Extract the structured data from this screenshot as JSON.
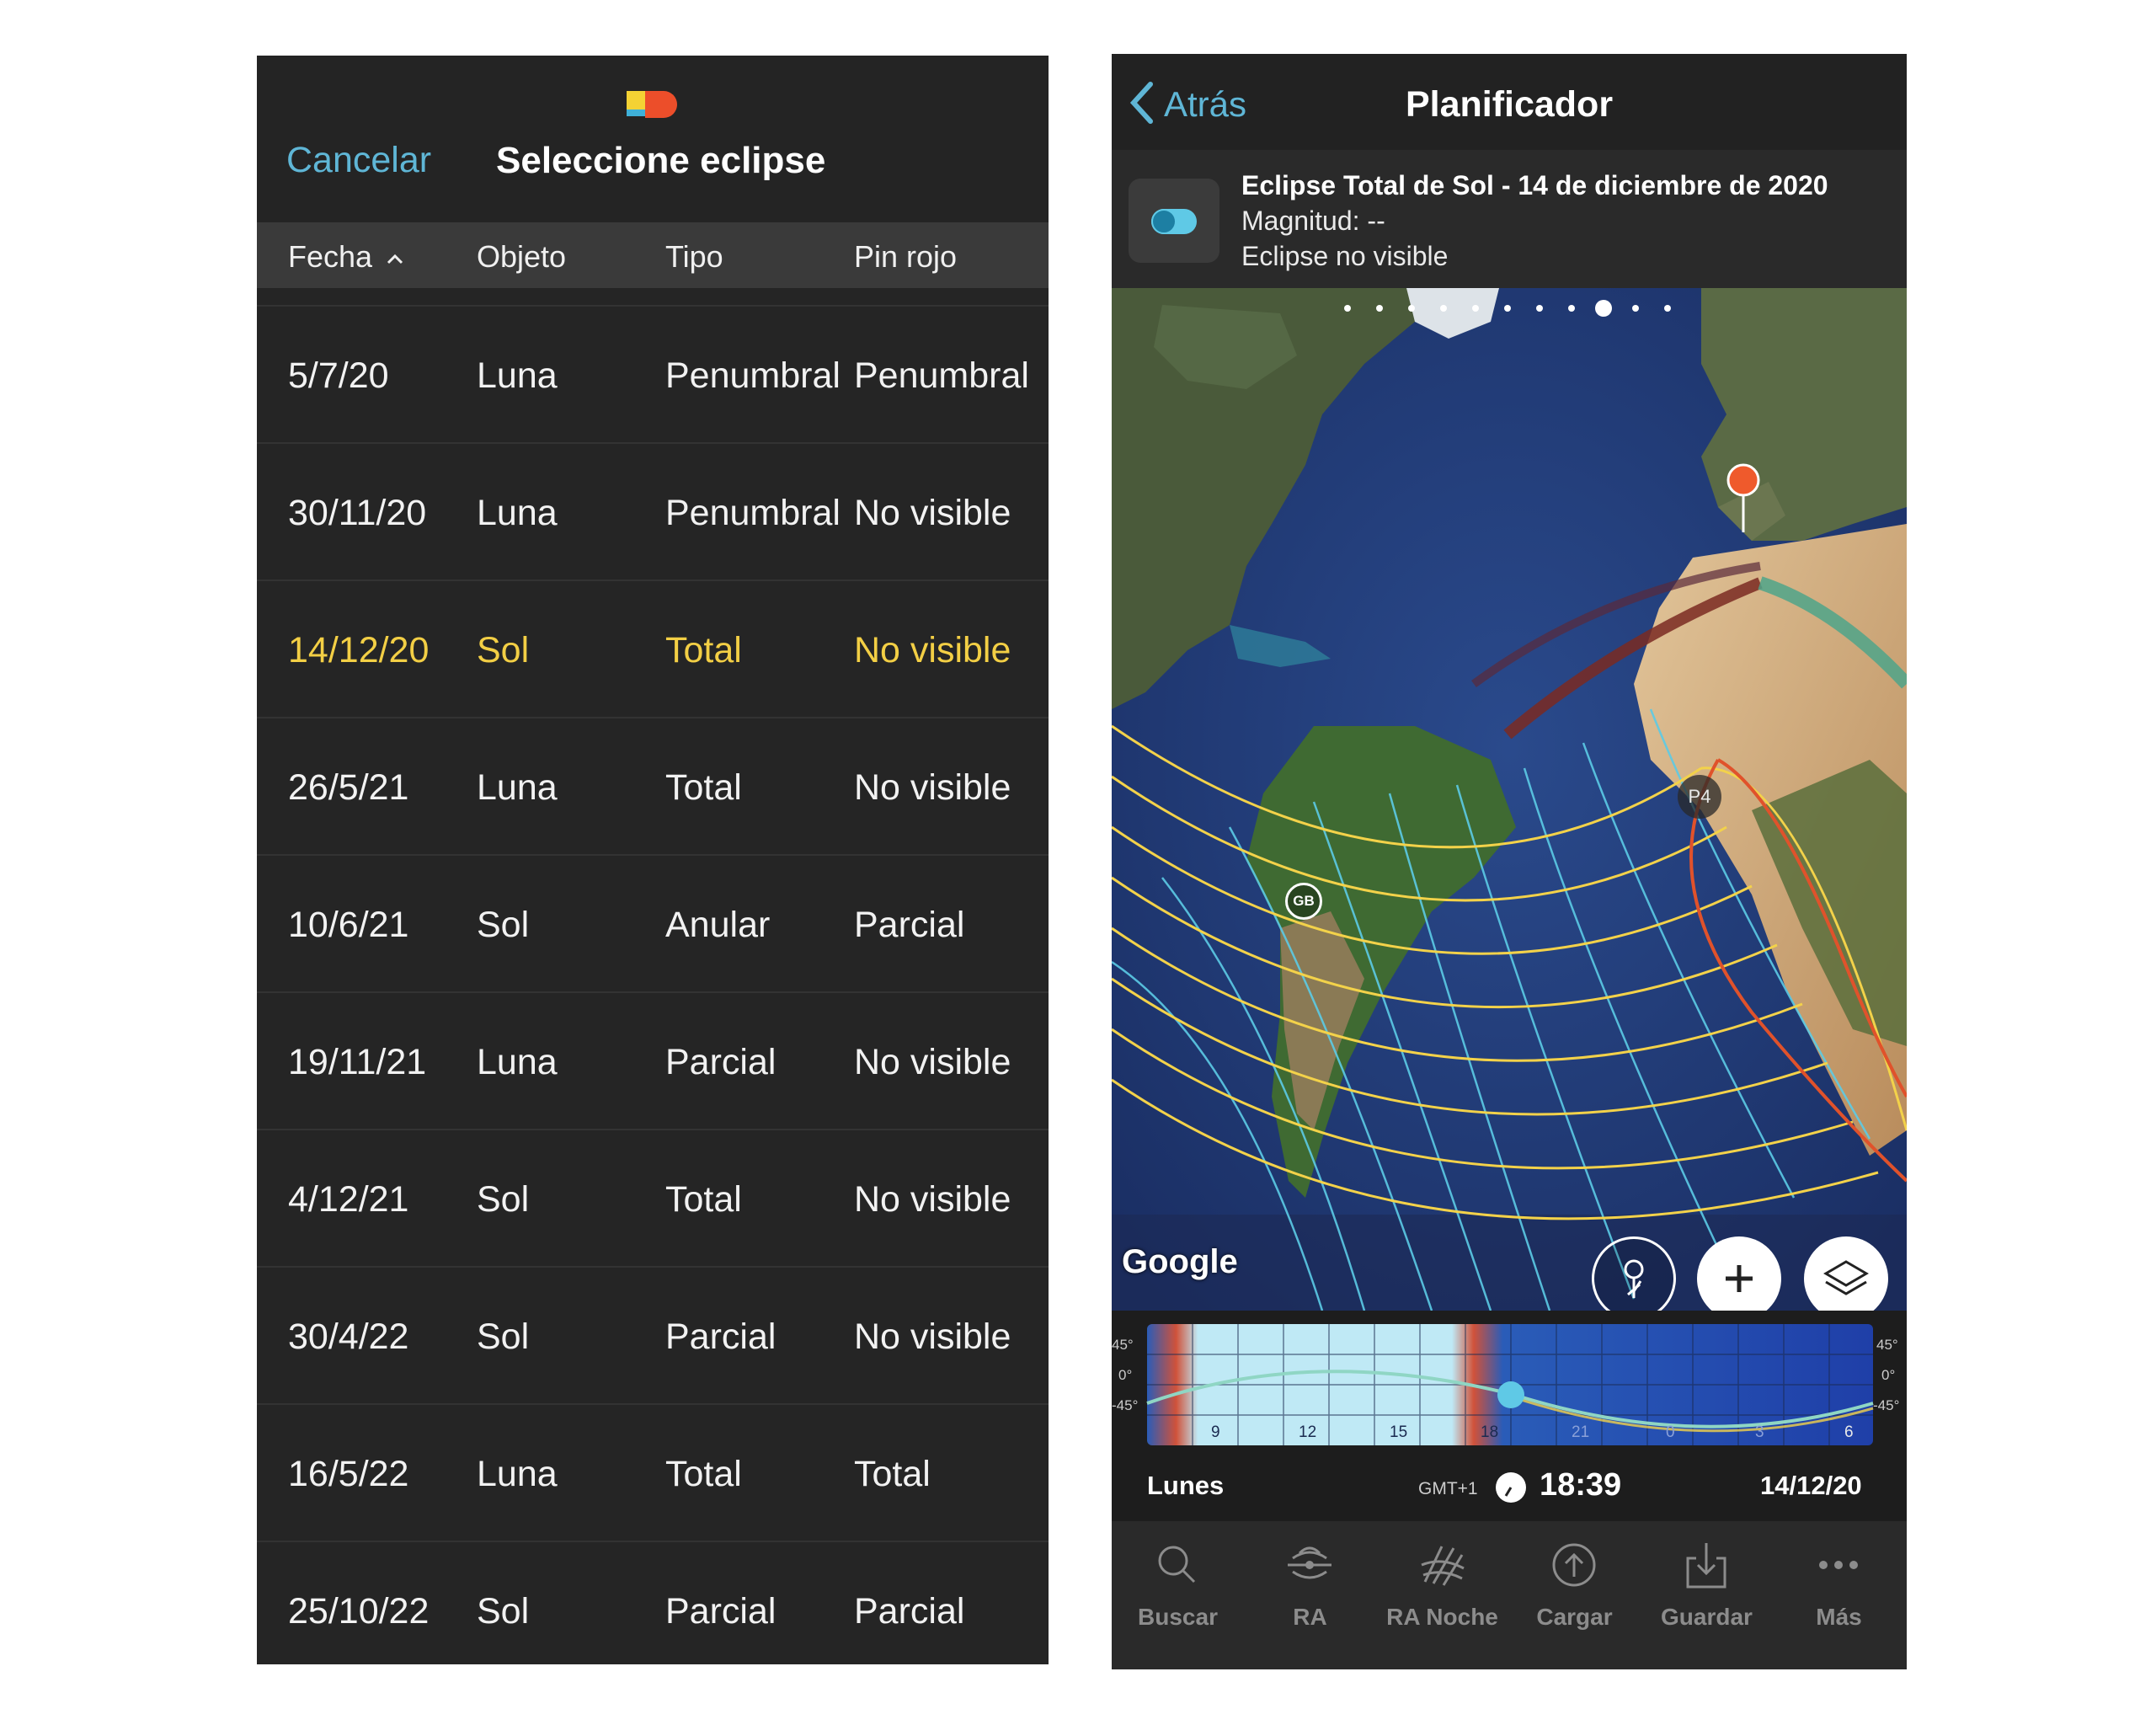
{
  "left_panel": {
    "cancel_label": "Cancelar",
    "title": "Seleccione eclipse",
    "columns": [
      "Fecha",
      "Objeto",
      "Tipo",
      "Pin rojo"
    ],
    "sort_indicator": "chevron-up-icon",
    "highlight_color": "#f3cf45",
    "rows": [
      {
        "fecha": "5/7/20",
        "objeto": "Luna",
        "tipo": "Penumbral",
        "pin": "Penumbral"
      },
      {
        "fecha": "30/11/20",
        "objeto": "Luna",
        "tipo": "Penumbral",
        "pin": "No visible"
      },
      {
        "fecha": "14/12/20",
        "objeto": "Sol",
        "tipo": "Total",
        "pin": "No visible"
      },
      {
        "fecha": "26/5/21",
        "objeto": "Luna",
        "tipo": "Total",
        "pin": "No visible"
      },
      {
        "fecha": "10/6/21",
        "objeto": "Sol",
        "tipo": "Anular",
        "pin": "Parcial"
      },
      {
        "fecha": "19/11/21",
        "objeto": "Luna",
        "tipo": "Parcial",
        "pin": "No visible"
      },
      {
        "fecha": "4/12/21",
        "objeto": "Sol",
        "tipo": "Total",
        "pin": "No visible"
      },
      {
        "fecha": "30/4/22",
        "objeto": "Sol",
        "tipo": "Parcial",
        "pin": "No visible"
      },
      {
        "fecha": "16/5/22",
        "objeto": "Luna",
        "tipo": "Total",
        "pin": "Total"
      },
      {
        "fecha": "25/10/22",
        "objeto": "Sol",
        "tipo": "Parcial",
        "pin": "Parcial"
      }
    ]
  },
  "right_panel": {
    "back_label": "Atrás",
    "title": "Planificador",
    "eclipse_title": "Eclipse Total de Sol - 14 de diciembre de 2020",
    "magnitude": "Magnitud: --",
    "visibility": "Eclipse no visible",
    "map": {
      "logo": "Google",
      "p4_label": "P4",
      "gb_label": "GB",
      "page_dots": 10,
      "active_dot": 8
    },
    "graph": {
      "left_ticks": [
        "45°",
        "0°",
        "-45°"
      ],
      "right_ticks": [
        "45°",
        "0°",
        "-45°"
      ],
      "hour_labels": [
        "9",
        "12",
        "15",
        "18",
        "21",
        "0",
        "3",
        "6"
      ]
    },
    "status": {
      "day": "Lunes",
      "timezone": "GMT+1",
      "time": "18:39",
      "date": "14/12/20"
    },
    "tabs": [
      {
        "label": "Buscar",
        "icon": "search-icon"
      },
      {
        "label": "RA",
        "icon": "ar-icon"
      },
      {
        "label": "RA Noche",
        "icon": "ar-night-icon"
      },
      {
        "label": "Cargar",
        "icon": "upload-icon"
      },
      {
        "label": "Guardar",
        "icon": "save-icon"
      },
      {
        "label": "Más",
        "icon": "more-icon"
      }
    ]
  }
}
